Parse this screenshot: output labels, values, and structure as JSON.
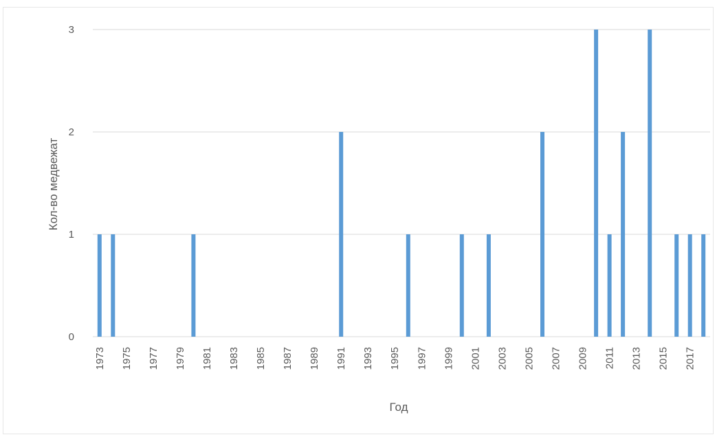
{
  "chart_data": {
    "type": "bar",
    "title": "",
    "xlabel": "Год",
    "ylabel": "Кол-во медвежат",
    "ylim": [
      0,
      3
    ],
    "yticks": [
      0,
      1,
      2,
      3
    ],
    "grid": true,
    "legend": "none",
    "bar_color": "#5b9bd5",
    "grid_color": "#d9d9d9",
    "categories": [
      1973,
      1974,
      1975,
      1976,
      1977,
      1978,
      1979,
      1980,
      1981,
      1982,
      1983,
      1984,
      1985,
      1986,
      1987,
      1988,
      1989,
      1990,
      1991,
      1992,
      1993,
      1994,
      1995,
      1996,
      1997,
      1998,
      1999,
      2000,
      2001,
      2002,
      2003,
      2004,
      2005,
      2006,
      2007,
      2008,
      2009,
      2010,
      2011,
      2012,
      2013,
      2014,
      2015,
      2016,
      2017,
      2018
    ],
    "tick_labels": [
      "1973",
      "1975",
      "1977",
      "1979",
      "1981",
      "1983",
      "1985",
      "1987",
      "1989",
      "1991",
      "1993",
      "1995",
      "1997",
      "1999",
      "2001",
      "2003",
      "2005",
      "2007",
      "2009",
      "2011",
      "2013",
      "2015",
      "2017"
    ],
    "values": [
      1,
      1,
      0,
      0,
      0,
      0,
      0,
      1,
      0,
      0,
      0,
      0,
      0,
      0,
      0,
      0,
      0,
      0,
      2,
      0,
      0,
      0,
      0,
      1,
      0,
      0,
      0,
      1,
      0,
      1,
      0,
      0,
      0,
      2,
      0,
      0,
      0,
      3,
      1,
      2,
      0,
      3,
      0,
      1,
      1,
      1
    ]
  }
}
